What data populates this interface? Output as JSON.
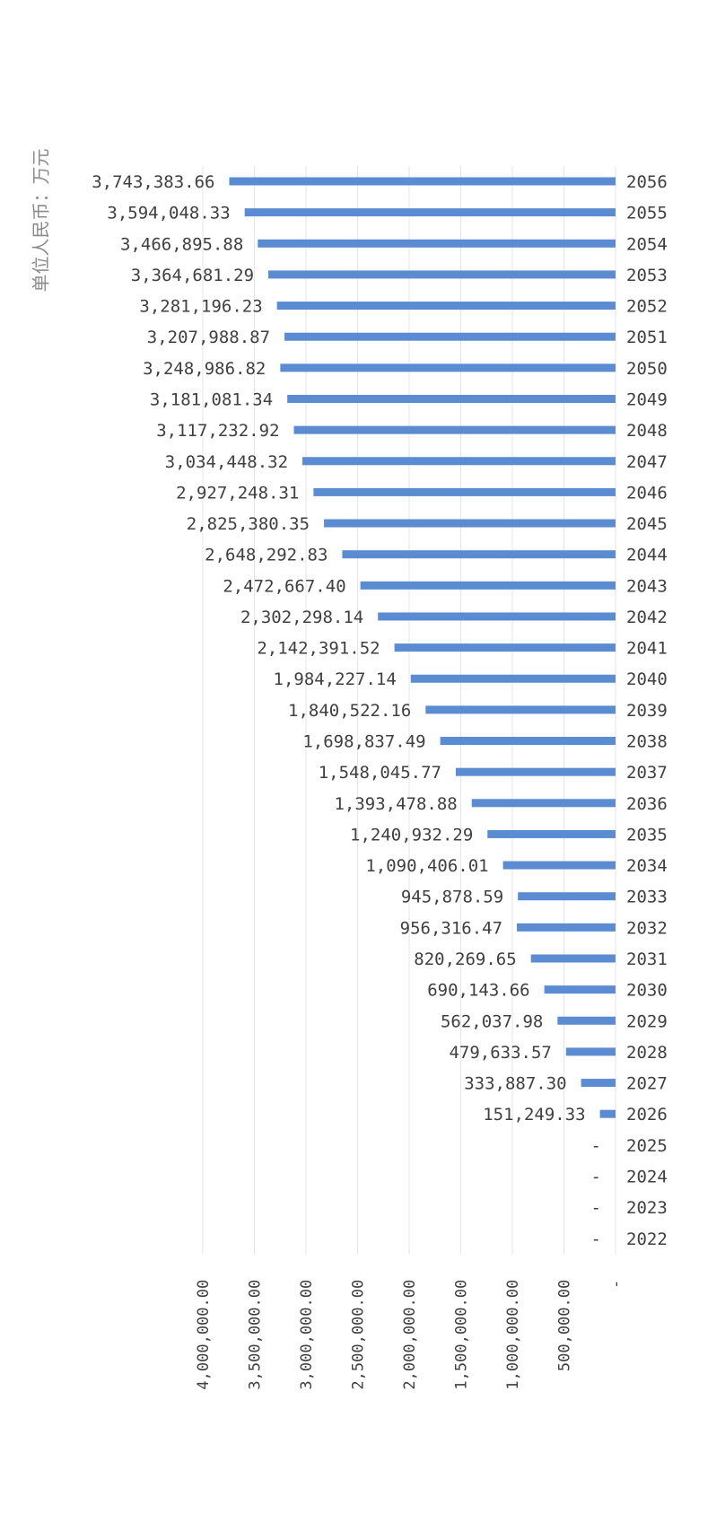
{
  "chart_data": {
    "type": "bar",
    "orientation": "horizontal",
    "axis_reversed": true,
    "unit_label": "单位人民币：万元",
    "categories": [
      "2056",
      "2055",
      "2054",
      "2053",
      "2052",
      "2051",
      "2050",
      "2049",
      "2048",
      "2047",
      "2046",
      "2045",
      "2044",
      "2043",
      "2042",
      "2041",
      "2040",
      "2039",
      "2038",
      "2037",
      "2036",
      "2035",
      "2034",
      "2033",
      "2032",
      "2031",
      "2030",
      "2029",
      "2028",
      "2027",
      "2026",
      "2025",
      "2024",
      "2023",
      "2022"
    ],
    "values": [
      3743383.66,
      3594048.33,
      3466895.88,
      3364681.29,
      3281196.23,
      3207988.87,
      3248986.82,
      3181081.34,
      3117232.92,
      3034448.32,
      2927248.31,
      2825380.35,
      2648292.83,
      2472667.4,
      2302298.14,
      2142391.52,
      1984227.14,
      1840522.16,
      1698837.49,
      1548045.77,
      1393478.88,
      1240932.29,
      1090406.01,
      945878.59,
      956316.47,
      820269.65,
      690143.66,
      562037.98,
      479633.57,
      333887.3,
      151249.33,
      0,
      0,
      0,
      0
    ],
    "value_labels": [
      "3,743,383.66",
      "3,594,048.33",
      "3,466,895.88",
      "3,364,681.29",
      "3,281,196.23",
      "3,207,988.87",
      "3,248,986.82",
      "3,181,081.34",
      "3,117,232.92",
      "3,034,448.32",
      "2,927,248.31",
      "2,825,380.35",
      "2,648,292.83",
      "2,472,667.40",
      "2,302,298.14",
      "2,142,391.52",
      "1,984,227.14",
      "1,840,522.16",
      "1,698,837.49",
      "1,548,045.77",
      "1,393,478.88",
      "1,240,932.29",
      "1,090,406.01",
      "945,878.59",
      "956,316.47",
      "820,269.65",
      "690,143.66",
      "562,037.98",
      "479,633.57",
      "333,887.30",
      "151,249.33",
      "-",
      "-",
      "-",
      "-"
    ],
    "xlim": [
      0,
      4000000
    ],
    "ticks": [
      0,
      500000,
      1000000,
      1500000,
      2000000,
      2500000,
      3000000,
      3500000,
      4000000
    ],
    "tick_labels": [
      "-",
      "500,000.00",
      "1,000,000.00",
      "1,500,000.00",
      "2,000,000.00",
      "2,500,000.00",
      "3,000,000.00",
      "3,500,000.00",
      "4,000,000.00"
    ],
    "bar_color": "#5b8bd0",
    "grid": true,
    "grid_color": "#e6e6e6"
  }
}
